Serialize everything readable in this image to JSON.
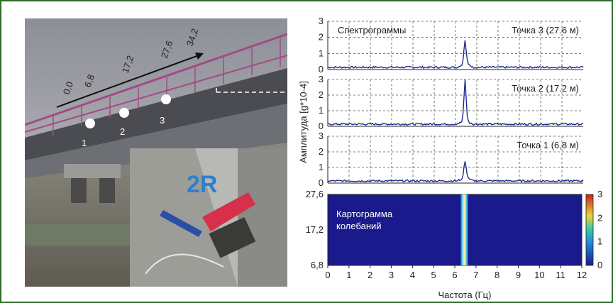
{
  "photo": {
    "distances": [
      "0,0",
      "6,8",
      "17,2",
      "27,6",
      "34,2"
    ],
    "points": [
      "1",
      "2",
      "3"
    ],
    "sign_text": "2R"
  },
  "chart_data": [
    {
      "type": "line",
      "title": "Спектрограммы",
      "series": [
        {
          "name": "Точка 3 (27.6 м)",
          "peak_x": 6.45,
          "peak_y": 1.7
        }
      ],
      "xlim": [
        0,
        12
      ],
      "ylim": [
        0,
        3
      ],
      "yticks": [
        "3",
        "2",
        "1",
        "0"
      ],
      "grid": true
    },
    {
      "type": "line",
      "series": [
        {
          "name": "Точка 2 (17.2 м)",
          "peak_x": 6.45,
          "peak_y": 2.7
        }
      ],
      "xlim": [
        0,
        12
      ],
      "ylim": [
        0,
        3
      ],
      "yticks": [
        "3",
        "2",
        "1",
        "0"
      ],
      "ylabel": "Амплитуда [g*10-4]",
      "grid": true
    },
    {
      "type": "line",
      "series": [
        {
          "name": "Точка 1 (6,8 м)",
          "peak_x": 6.45,
          "peak_y": 1.2
        }
      ],
      "xlim": [
        0,
        12
      ],
      "ylim": [
        0,
        3
      ],
      "yticks": [
        "3",
        "2",
        "1",
        "0"
      ],
      "grid": true
    },
    {
      "type": "heatmap",
      "title": "Картограмма колебаний",
      "title_lines": [
        "Картограмма",
        "колебаний"
      ],
      "x": [
        0,
        1,
        2,
        3,
        4,
        5,
        6,
        7,
        8,
        9,
        10,
        11,
        12
      ],
      "xlabel": "Частота (Гц)",
      "y_ticks": [
        "27,6",
        "17,2",
        "6,8"
      ],
      "band_x": 6.45,
      "colorbar_ticks": [
        "3",
        "2",
        "1",
        "0"
      ],
      "colorbar_range": [
        0,
        3
      ]
    }
  ]
}
